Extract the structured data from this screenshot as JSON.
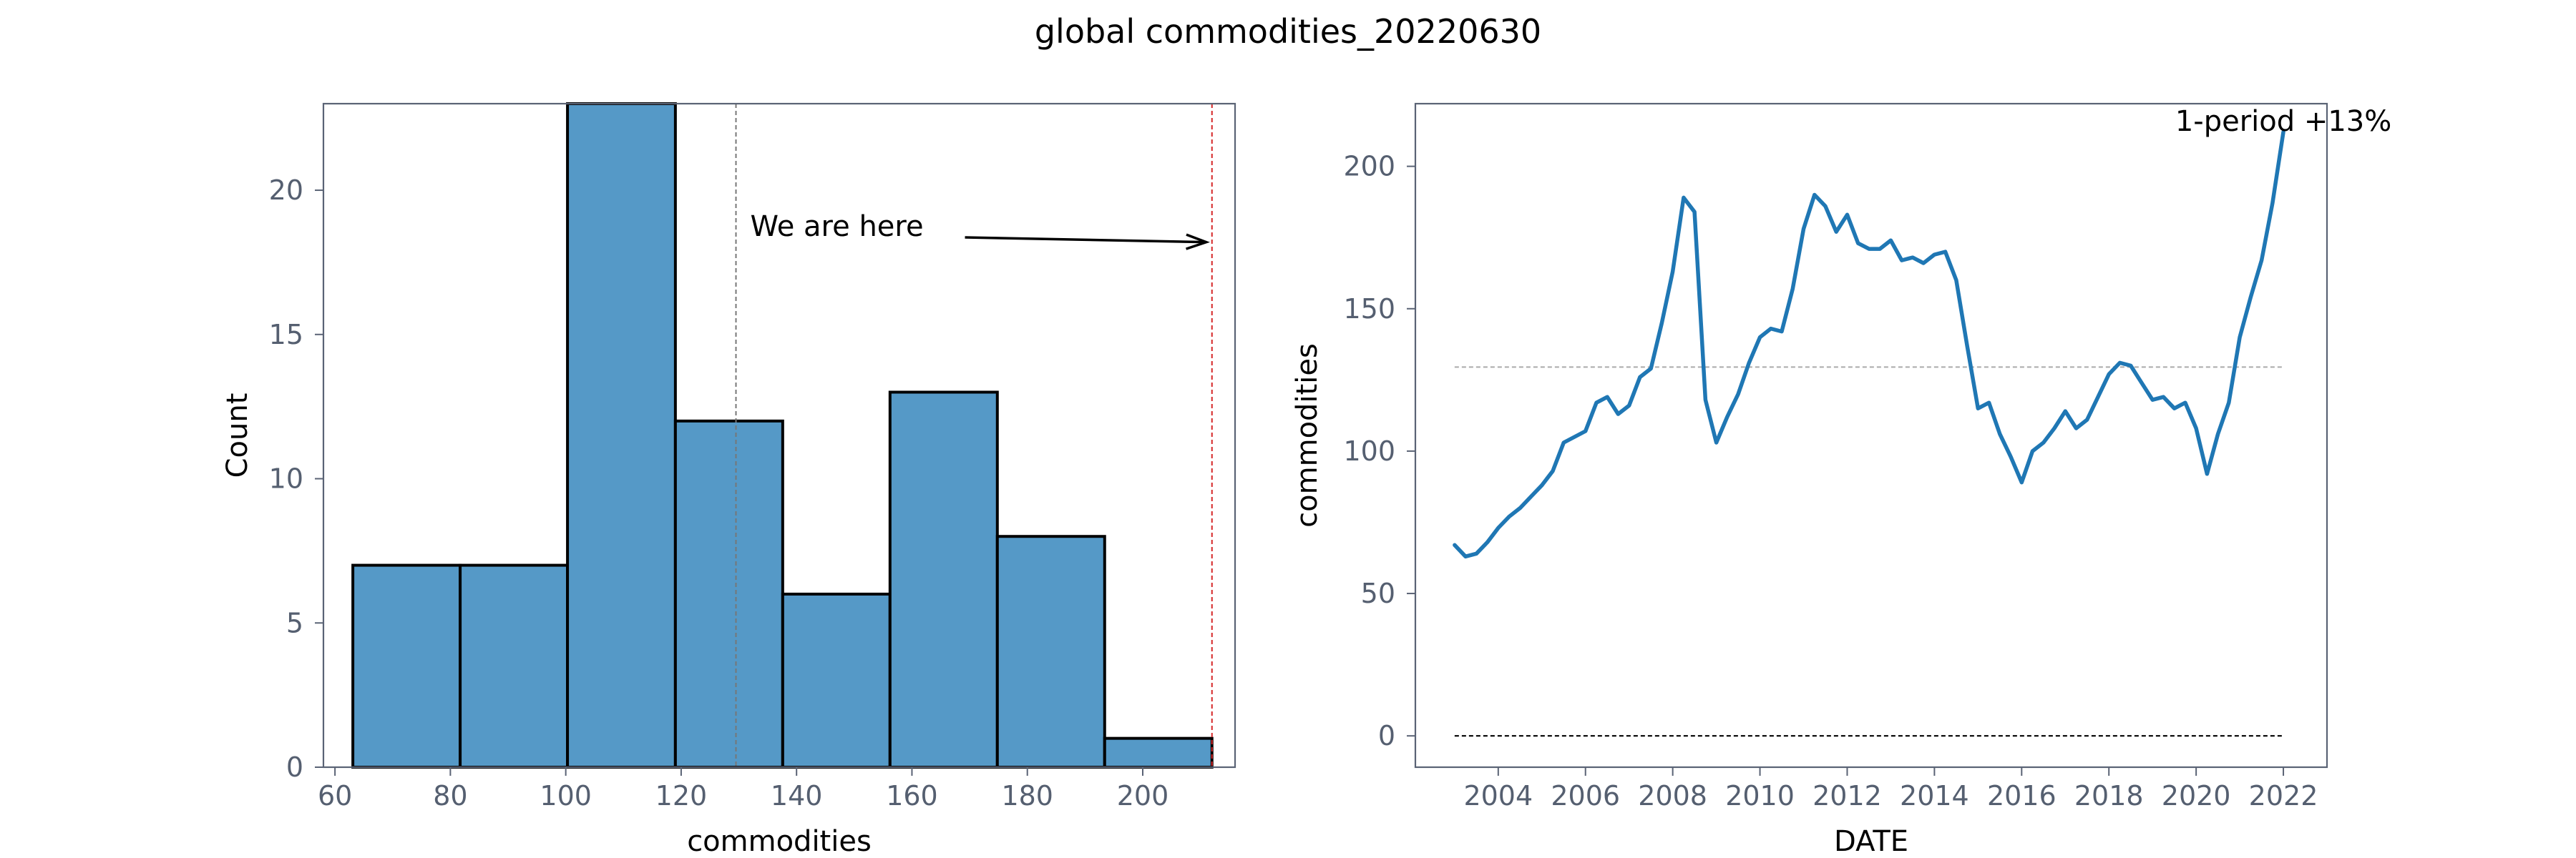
{
  "figure": {
    "title": "global commodities_20220630"
  },
  "colors": {
    "bar_fill": "#5599c7",
    "bar_edge": "#000000",
    "line": "#1f77b4",
    "mean_line": "#777777",
    "current_line": "#d62728",
    "zero_line": "#000000",
    "annotation_green": "#2ca02c",
    "frame": "#5a6375",
    "tick_text": "#555f70"
  },
  "chart_data": [
    {
      "type": "bar",
      "subtype": "histogram",
      "xlabel": "commodities",
      "ylabel": "Count",
      "xlim": [
        58,
        216
      ],
      "ylim": [
        0,
        23
      ],
      "xticks": [
        60,
        80,
        100,
        120,
        140,
        160,
        180,
        200
      ],
      "yticks": [
        0,
        5,
        10,
        15,
        20
      ],
      "bins": [
        {
          "x0": 63.1,
          "x1": 81.7,
          "count": 7
        },
        {
          "x0": 81.7,
          "x1": 100.3,
          "count": 7
        },
        {
          "x0": 100.3,
          "x1": 119.0,
          "count": 23
        },
        {
          "x0": 119.0,
          "x1": 137.6,
          "count": 12
        },
        {
          "x0": 137.6,
          "x1": 156.2,
          "count": 6
        },
        {
          "x0": 156.2,
          "x1": 174.8,
          "count": 13
        },
        {
          "x0": 174.8,
          "x1": 193.4,
          "count": 8
        },
        {
          "x0": 193.4,
          "x1": 212.0,
          "count": 1
        }
      ],
      "mean_value": 129.5,
      "current_value": 212.0,
      "annotation": {
        "text": "We are here",
        "arrow_to": [
          212.0,
          18.2
        ]
      },
      "grid": false
    },
    {
      "type": "line",
      "xlabel": "DATE",
      "ylabel": "commodities",
      "xlim": [
        2002.1,
        2023.0
      ],
      "ylim": [
        -11,
        222
      ],
      "xticks": [
        2004,
        2006,
        2008,
        2010,
        2012,
        2014,
        2016,
        2018,
        2020,
        2022
      ],
      "yticks": [
        0,
        50,
        100,
        150,
        200
      ],
      "mean_value": 129.5,
      "zero_value": 0,
      "annotation": {
        "text": "1-period +13%"
      },
      "grid": false,
      "series": [
        {
          "x": [
            2003.0,
            2003.25,
            2003.5,
            2003.75,
            2004.0,
            2004.25,
            2004.5,
            2004.75,
            2005.0,
            2005.25,
            2005.5,
            2005.75,
            2006.0,
            2006.25,
            2006.5,
            2006.75,
            2007.0,
            2007.25,
            2007.5,
            2007.75,
            2008.0,
            2008.25,
            2008.5,
            2008.75,
            2009.0,
            2009.25,
            2009.5,
            2009.75,
            2010.0,
            2010.25,
            2010.5,
            2010.75,
            2011.0,
            2011.25,
            2011.5,
            2011.75,
            2012.0,
            2012.25,
            2012.5,
            2012.75,
            2013.0,
            2013.25,
            2013.5,
            2013.75,
            2014.0,
            2014.25,
            2014.5,
            2014.75,
            2015.0,
            2015.25,
            2015.5,
            2015.75,
            2016.0,
            2016.25,
            2016.5,
            2016.75,
            2017.0,
            2017.25,
            2017.5,
            2017.75,
            2018.0,
            2018.25,
            2018.5,
            2018.75,
            2019.0,
            2019.25,
            2019.5,
            2019.75,
            2020.0,
            2020.25,
            2020.5,
            2020.75,
            2021.0,
            2021.25,
            2021.5,
            2021.75,
            2022.0
          ],
          "values": [
            67,
            63,
            64,
            68,
            73,
            77,
            80,
            84,
            88,
            93,
            103,
            105,
            107,
            117,
            119,
            113,
            116,
            126,
            129,
            145,
            163,
            189,
            184,
            118,
            103,
            112,
            120,
            131,
            140,
            143,
            142,
            157,
            178,
            190,
            186,
            177,
            183,
            173,
            171,
            171,
            174,
            167,
            168,
            166,
            169,
            170,
            160,
            137,
            115,
            117,
            106,
            98,
            89,
            100,
            103,
            108,
            114,
            108,
            111,
            119,
            127,
            131,
            130,
            124,
            118,
            119,
            115,
            117,
            108,
            92,
            106,
            117,
            140,
            154,
            167,
            187,
            212
          ]
        }
      ]
    }
  ]
}
